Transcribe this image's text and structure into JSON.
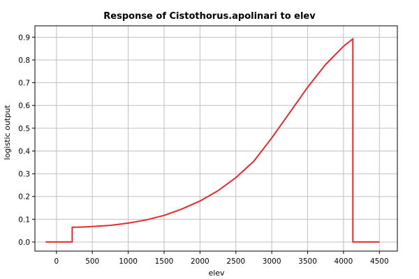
{
  "chart_data": {
    "type": "line",
    "title": "Response of Cistothorus.apolinari to elev",
    "xlabel": "elev",
    "ylabel": "logistic output",
    "xlim": [
      -300,
      4750
    ],
    "ylim": [
      -0.04,
      0.95
    ],
    "xticks": [
      0,
      500,
      1000,
      1500,
      2000,
      2500,
      3000,
      3500,
      4000,
      4500
    ],
    "yticks": [
      0.0,
      0.1,
      0.2,
      0.3,
      0.4,
      0.5,
      0.6,
      0.7,
      0.8,
      0.9
    ],
    "xtick_labels": [
      "0",
      "500",
      "1000",
      "1500",
      "2000",
      "2500",
      "3000",
      "3500",
      "4000",
      "4500"
    ],
    "ytick_labels": [
      "0.0",
      "0.1",
      "0.2",
      "0.3",
      "0.4",
      "0.5",
      "0.6",
      "0.7",
      "0.8",
      "0.9"
    ],
    "grid": true,
    "series": [
      {
        "color": "#e8282b",
        "x": [
          -150,
          220,
          220,
          300,
          500,
          750,
          1000,
          1250,
          1500,
          1750,
          2000,
          2250,
          2500,
          2750,
          3000,
          3250,
          3500,
          3750,
          4000,
          4130,
          4130,
          4500
        ],
        "y": [
          0.0,
          0.0,
          0.065,
          0.065,
          0.068,
          0.073,
          0.083,
          0.097,
          0.117,
          0.145,
          0.18,
          0.225,
          0.283,
          0.355,
          0.457,
          0.568,
          0.68,
          0.78,
          0.86,
          0.893,
          0.0,
          0.0
        ]
      }
    ]
  }
}
